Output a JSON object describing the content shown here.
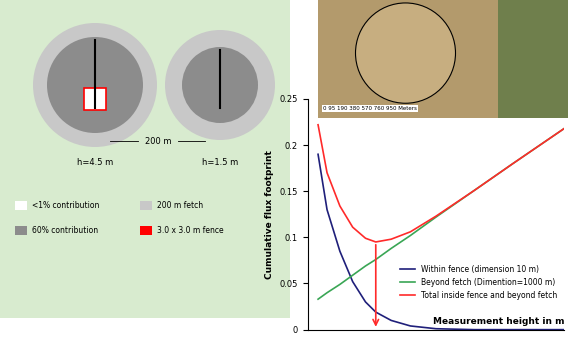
{
  "chart_data": {
    "type": "line",
    "x_label": "Measurement height in m",
    "y_label": "Cumulative flux footprint",
    "x": [
      0.8,
      1.5,
      2.5,
      3.5,
      4.5,
      5.3,
      6.5,
      8,
      10,
      13,
      16,
      20
    ],
    "series": [
      {
        "name": "Within fence (dimension 10 m)",
        "color": "#1f1f7a",
        "values": [
          0.19,
          0.13,
          0.085,
          0.052,
          0.03,
          0.019,
          0.01,
          0.004,
          0.001,
          0,
          0,
          0
        ]
      },
      {
        "name": "Beyond fetch (Dimention=1000 m)",
        "color": "#3aa655",
        "values": [
          0.033,
          0.04,
          0.049,
          0.059,
          0.069,
          0.076,
          0.088,
          0.102,
          0.122,
          0.151,
          0.18,
          0.218
        ]
      },
      {
        "name": "Total inside fence and beyond fetch",
        "color": "#ff2a2a",
        "values": [
          0.222,
          0.17,
          0.134,
          0.111,
          0.099,
          0.095,
          0.098,
          0.106,
          0.123,
          0.151,
          0.18,
          0.218
        ]
      }
    ],
    "xlim": [
      0,
      20
    ],
    "ylim": [
      0,
      0.25
    ],
    "yticks": [
      0,
      0.05,
      0.1,
      0.15,
      0.2,
      0.25
    ],
    "tick_labels": "y",
    "legend": "lower right",
    "grid": false
  },
  "diagram": {
    "left_height": "h=4.5 m",
    "right_height": "h=1.5 m",
    "distance": "200 m",
    "legend": [
      {
        "label": "<1% contribution",
        "color": "#ffffff"
      },
      {
        "label": "60% contribution",
        "color": "#8c8c8c"
      },
      {
        "label": "200 m fetch",
        "color": "#c8c8c8"
      },
      {
        "label": "3.0 x 3.0 m fence",
        "color": "#ff0000"
      }
    ]
  },
  "satellite": {
    "scale_text": "0 95 190 380 570 760 950 Meters"
  }
}
